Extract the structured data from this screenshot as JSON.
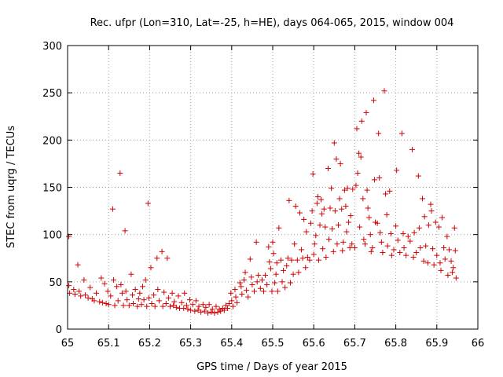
{
  "chart_data": {
    "type": "scatter",
    "title": "Rec. ufpr (Lon=310, Lat=-25, h=HE), days 064-065, 2015, window 004",
    "xlabel": "GPS time / Days of year 2015",
    "ylabel": "STEC from uqrg / TECUs",
    "xlim": [
      65,
      66
    ],
    "ylim": [
      0,
      300
    ],
    "xticks": [
      "65",
      "65.1",
      "65.2",
      "65.3",
      "65.4",
      "65.5",
      "65.6",
      "65.7",
      "65.8",
      "65.9",
      "66"
    ],
    "yticks": [
      "0",
      "50",
      "100",
      "150",
      "200",
      "250",
      "300"
    ],
    "grid": true,
    "marker": "plus",
    "color": "#d00000",
    "series": [
      {
        "points": [
          [
            65.003,
            98
          ],
          [
            65.003,
            46
          ],
          [
            65.005,
            38
          ],
          [
            65.015,
            42
          ],
          [
            65.018,
            37
          ],
          [
            65.025,
            68
          ],
          [
            65.028,
            40
          ],
          [
            65.032,
            35
          ],
          [
            65.04,
            52
          ],
          [
            65.043,
            36
          ],
          [
            65.05,
            33
          ],
          [
            65.055,
            44
          ],
          [
            65.06,
            32
          ],
          [
            65.065,
            30
          ],
          [
            65.07,
            38
          ],
          [
            65.078,
            29
          ],
          [
            65.082,
            54
          ],
          [
            65.085,
            28
          ],
          [
            65.09,
            48
          ],
          [
            65.094,
            27
          ],
          [
            65.098,
            40
          ],
          [
            65.1,
            26
          ],
          [
            65.105,
            35
          ],
          [
            65.11,
            127
          ],
          [
            65.112,
            52
          ],
          [
            65.115,
            25
          ],
          [
            65.12,
            45
          ],
          [
            65.123,
            30
          ],
          [
            65.128,
            165
          ],
          [
            65.13,
            47
          ],
          [
            65.133,
            38
          ],
          [
            65.136,
            25
          ],
          [
            65.14,
            104
          ],
          [
            65.142,
            40
          ],
          [
            65.145,
            31
          ],
          [
            65.15,
            25
          ],
          [
            65.155,
            58
          ],
          [
            65.158,
            36
          ],
          [
            65.16,
            27
          ],
          [
            65.165,
            42
          ],
          [
            65.17,
            24
          ],
          [
            65.173,
            32
          ],
          [
            65.176,
            38
          ],
          [
            65.18,
            26
          ],
          [
            65.183,
            45
          ],
          [
            65.186,
            31
          ],
          [
            65.19,
            52
          ],
          [
            65.193,
            24
          ],
          [
            65.196,
            133
          ],
          [
            65.198,
            33
          ],
          [
            65.203,
            65
          ],
          [
            65.205,
            27
          ],
          [
            65.21,
            36
          ],
          [
            65.213,
            24
          ],
          [
            65.218,
            75
          ],
          [
            65.22,
            42
          ],
          [
            65.223,
            30
          ],
          [
            65.23,
            82
          ],
          [
            65.232,
            24
          ],
          [
            65.235,
            39
          ],
          [
            65.24,
            27
          ],
          [
            65.243,
            75
          ],
          [
            65.246,
            33
          ],
          [
            65.25,
            24
          ],
          [
            65.255,
            38
          ],
          [
            65.258,
            25
          ],
          [
            65.26,
            29
          ],
          [
            65.265,
            23
          ],
          [
            65.27,
            35
          ],
          [
            65.273,
            22
          ],
          [
            65.278,
            28
          ],
          [
            65.283,
            22
          ],
          [
            65.285,
            38
          ],
          [
            65.29,
            25
          ],
          [
            65.293,
            21
          ],
          [
            65.298,
            31
          ],
          [
            65.3,
            20
          ],
          [
            65.305,
            26
          ],
          [
            65.31,
            19
          ],
          [
            65.313,
            30
          ],
          [
            65.318,
            20
          ],
          [
            65.32,
            24
          ],
          [
            65.325,
            18
          ],
          [
            65.33,
            26
          ],
          [
            65.334,
            19
          ],
          [
            65.337,
            23
          ],
          [
            65.342,
            17
          ],
          [
            65.345,
            26
          ],
          [
            65.35,
            18
          ],
          [
            65.353,
            21
          ],
          [
            65.358,
            17
          ],
          [
            65.362,
            24
          ],
          [
            65.366,
            18
          ],
          [
            65.37,
            21
          ],
          [
            65.373,
            19
          ],
          [
            65.378,
            22
          ],
          [
            65.382,
            20
          ],
          [
            65.386,
            25
          ],
          [
            65.39,
            22
          ],
          [
            65.394,
            27
          ],
          [
            65.398,
            38
          ],
          [
            65.4,
            30
          ],
          [
            65.403,
            24
          ],
          [
            65.408,
            42
          ],
          [
            65.41,
            34
          ],
          [
            65.413,
            28
          ],
          [
            65.42,
            49
          ],
          [
            65.423,
            45
          ],
          [
            65.425,
            37
          ],
          [
            65.43,
            52
          ],
          [
            65.433,
            60
          ],
          [
            65.436,
            41
          ],
          [
            65.44,
            34
          ],
          [
            65.445,
            74
          ],
          [
            65.448,
            55
          ],
          [
            65.45,
            47
          ],
          [
            65.455,
            40
          ],
          [
            65.46,
            92
          ],
          [
            65.462,
            50
          ],
          [
            65.465,
            57
          ],
          [
            65.47,
            43
          ],
          [
            65.474,
            52
          ],
          [
            65.478,
            40
          ],
          [
            65.482,
            57
          ],
          [
            65.486,
            47
          ],
          [
            65.49,
            87
          ],
          [
            65.492,
            71
          ],
          [
            65.495,
            64
          ],
          [
            65.498,
            40
          ],
          [
            65.5,
            92
          ],
          [
            65.502,
            80
          ],
          [
            65.505,
            49
          ],
          [
            65.508,
            58
          ],
          [
            65.51,
            70
          ],
          [
            65.512,
            40
          ],
          [
            65.515,
            107
          ],
          [
            65.52,
            73
          ],
          [
            65.523,
            50
          ],
          [
            65.526,
            62
          ],
          [
            65.53,
            44
          ],
          [
            65.534,
            67
          ],
          [
            65.537,
            75
          ],
          [
            65.54,
            136
          ],
          [
            65.543,
            49
          ],
          [
            65.546,
            73
          ],
          [
            65.55,
            58
          ],
          [
            65.553,
            90
          ],
          [
            65.556,
            130
          ],
          [
            65.56,
            73
          ],
          [
            65.563,
            60
          ],
          [
            65.566,
            123
          ],
          [
            65.57,
            84
          ],
          [
            65.573,
            75
          ],
          [
            65.576,
            116
          ],
          [
            65.58,
            65
          ],
          [
            65.582,
            103
          ],
          [
            65.585,
            76
          ],
          [
            65.59,
            73
          ],
          [
            65.593,
            112
          ],
          [
            65.596,
            125
          ],
          [
            65.598,
            164
          ],
          [
            65.6,
            79
          ],
          [
            65.602,
            90
          ],
          [
            65.605,
            99
          ],
          [
            65.608,
            133
          ],
          [
            65.61,
            140
          ],
          [
            65.612,
            73
          ],
          [
            65.615,
            110
          ],
          [
            65.618,
            137
          ],
          [
            65.62,
            122
          ],
          [
            65.622,
            85
          ],
          [
            65.625,
            127
          ],
          [
            65.628,
            108
          ],
          [
            65.63,
            76
          ],
          [
            65.635,
            170
          ],
          [
            65.637,
            95
          ],
          [
            65.64,
            128
          ],
          [
            65.643,
            149
          ],
          [
            65.645,
            106
          ],
          [
            65.648,
            82
          ],
          [
            65.65,
            197
          ],
          [
            65.652,
            125
          ],
          [
            65.655,
            180
          ],
          [
            65.657,
            90
          ],
          [
            65.66,
            110
          ],
          [
            65.663,
            138
          ],
          [
            65.665,
            175
          ],
          [
            65.668,
            127
          ],
          [
            65.67,
            83
          ],
          [
            65.672,
            92
          ],
          [
            65.675,
            147
          ],
          [
            65.678,
            130
          ],
          [
            65.68,
            103
          ],
          [
            65.682,
            149
          ],
          [
            65.685,
            113
          ],
          [
            65.688,
            86
          ],
          [
            65.69,
            120
          ],
          [
            65.693,
            90
          ],
          [
            65.695,
            148
          ],
          [
            65.7,
            86
          ],
          [
            65.703,
            152
          ],
          [
            65.705,
            212
          ],
          [
            65.707,
            165
          ],
          [
            65.71,
            186
          ],
          [
            65.712,
            108
          ],
          [
            65.715,
            182
          ],
          [
            65.717,
            220
          ],
          [
            65.72,
            138
          ],
          [
            65.722,
            95
          ],
          [
            65.725,
            90
          ],
          [
            65.728,
            229
          ],
          [
            65.73,
            147
          ],
          [
            65.732,
            128
          ],
          [
            65.735,
            118
          ],
          [
            65.738,
            100
          ],
          [
            65.74,
            82
          ],
          [
            65.743,
            86
          ],
          [
            65.746,
            242
          ],
          [
            65.748,
            158
          ],
          [
            65.75,
            113
          ],
          [
            65.755,
            112
          ],
          [
            65.758,
            207
          ],
          [
            65.76,
            160
          ],
          [
            65.762,
            102
          ],
          [
            65.765,
            92
          ],
          [
            65.768,
            81
          ],
          [
            65.772,
            252
          ],
          [
            65.775,
            143
          ],
          [
            65.778,
            121
          ],
          [
            65.78,
            88
          ],
          [
            65.785,
            146
          ],
          [
            65.788,
            101
          ],
          [
            65.79,
            78
          ],
          [
            65.795,
            84
          ],
          [
            65.8,
            109
          ],
          [
            65.802,
            168
          ],
          [
            65.805,
            94
          ],
          [
            65.81,
            81
          ],
          [
            65.815,
            207
          ],
          [
            65.818,
            101
          ],
          [
            65.82,
            86
          ],
          [
            65.825,
            78
          ],
          [
            65.83,
            98
          ],
          [
            65.835,
            93
          ],
          [
            65.84,
            190
          ],
          [
            65.843,
            76
          ],
          [
            65.845,
            102
          ],
          [
            65.85,
            81
          ],
          [
            65.855,
            162
          ],
          [
            65.857,
            107
          ],
          [
            65.86,
            86
          ],
          [
            65.865,
            138
          ],
          [
            65.868,
            72
          ],
          [
            65.87,
            119
          ],
          [
            65.873,
            88
          ],
          [
            65.878,
            70
          ],
          [
            65.88,
            110
          ],
          [
            65.885,
            132
          ],
          [
            65.887,
            125
          ],
          [
            65.89,
            85
          ],
          [
            65.893,
            68
          ],
          [
            65.897,
            113
          ],
          [
            65.9,
            78
          ],
          [
            65.905,
            108
          ],
          [
            65.908,
            70
          ],
          [
            65.91,
            62
          ],
          [
            65.913,
            118
          ],
          [
            65.917,
            86
          ],
          [
            65.92,
            74
          ],
          [
            65.925,
            98
          ],
          [
            65.927,
            57
          ],
          [
            65.93,
            84
          ],
          [
            65.935,
            72
          ],
          [
            65.938,
            60
          ],
          [
            65.94,
            65
          ],
          [
            65.943,
            107
          ],
          [
            65.945,
            83
          ],
          [
            65.947,
            54
          ]
        ]
      }
    ]
  }
}
